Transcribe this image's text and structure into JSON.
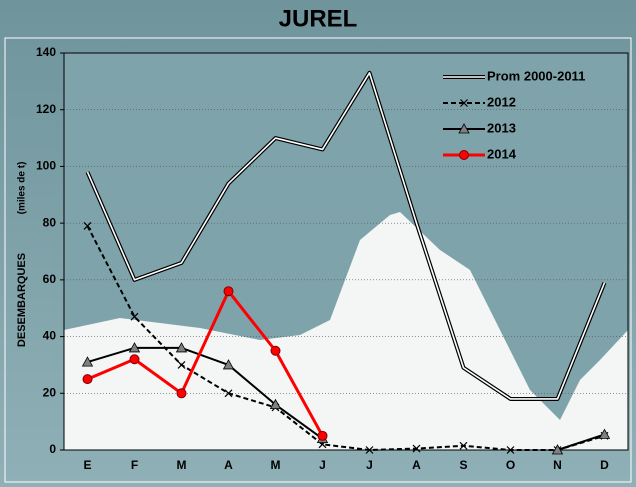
{
  "chart_data": {
    "type": "line",
    "title": "JUREL",
    "y_label": "DESEMBARQUES",
    "y_label_unit": "(miles de t)",
    "categories": [
      "E",
      "F",
      "M",
      "A",
      "M",
      "J",
      "J",
      "A",
      "S",
      "O",
      "N",
      "D"
    ],
    "series": [
      {
        "name": "Prom 2000-2011",
        "color": "#000000",
        "style": "double",
        "marker": "none",
        "values": [
          98,
          60,
          66,
          94,
          110,
          106,
          133,
          80,
          29,
          18,
          18,
          59
        ]
      },
      {
        "name": "2012",
        "color": "#000000",
        "style": "dashed",
        "marker": "x",
        "values": [
          79,
          47,
          30,
          20,
          15,
          2,
          0,
          0.5,
          1.5,
          0,
          0,
          5
        ]
      },
      {
        "name": "2013",
        "color": "#000000",
        "marker_color": "#808080",
        "style": "solid",
        "marker": "triangle",
        "values": [
          31,
          36,
          36,
          30,
          16,
          4,
          null,
          null,
          null,
          null,
          0,
          5.5
        ]
      },
      {
        "name": "2014",
        "color": "#ff0000",
        "marker_color": "#ff0000",
        "style": "solid",
        "marker": "circle",
        "values": [
          25,
          32,
          20,
          56,
          35,
          5,
          null,
          null,
          null,
          null,
          null,
          null
        ]
      }
    ],
    "ylim": [
      0,
      140
    ],
    "yticks": [
      0,
      20,
      40,
      60,
      80,
      100,
      120,
      140
    ],
    "grid": true,
    "legend": "upper right"
  }
}
